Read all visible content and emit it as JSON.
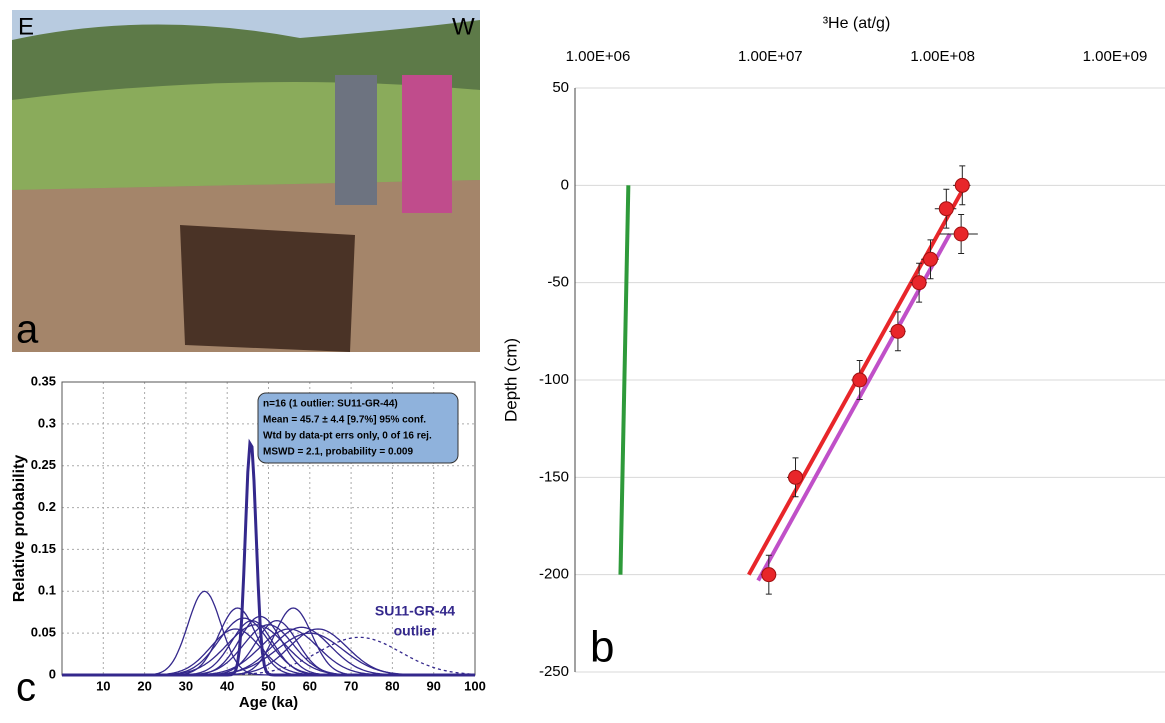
{
  "photo": {
    "left": "E",
    "right": "W",
    "panel": "a"
  },
  "chart_data": [
    {
      "type": "density",
      "panel": "c",
      "xlabel": "Age (ka)",
      "ylabel": "Relative probability",
      "xlim": [
        0,
        100
      ],
      "ylim": [
        0,
        0.35
      ],
      "xticks": [
        10,
        20,
        30,
        40,
        50,
        60,
        70,
        80,
        90,
        100
      ],
      "yticks": [
        0,
        0.05,
        0.1,
        0.15,
        0.2,
        0.25,
        0.3,
        0.35
      ],
      "grid": true,
      "color": "#34288c",
      "annotation": [
        "n=16 (1 outlier: SU11-GR-44)",
        "Mean = 45.7 ± 4.4  [9.7%]  95% conf.",
        "Wtd by data-pt errs only, 0 of 16 rej.",
        "MSWD = 2.1, probability = 0.009"
      ],
      "outlier_label": [
        "SU11-GR-44",
        "outlier"
      ],
      "curves": [
        {
          "center": 34.5,
          "peak": 0.1,
          "width": 4
        },
        {
          "center": 42.5,
          "peak": 0.08,
          "width": 4.5
        },
        {
          "center": 46,
          "peak": 0.065,
          "width": 5
        },
        {
          "center": 44,
          "peak": 0.068,
          "width": 6
        },
        {
          "center": 50,
          "peak": 0.06,
          "width": 6
        },
        {
          "center": 42,
          "peak": 0.055,
          "width": 6
        },
        {
          "center": 52,
          "peak": 0.065,
          "width": 5
        },
        {
          "center": 47,
          "peak": 0.06,
          "width": 7
        },
        {
          "center": 56,
          "peak": 0.08,
          "width": 4.5
        },
        {
          "center": 55,
          "peak": 0.055,
          "width": 7
        },
        {
          "center": 58,
          "peak": 0.057,
          "width": 7
        },
        {
          "center": 60,
          "peak": 0.05,
          "width": 8
        },
        {
          "center": 62,
          "peak": 0.055,
          "width": 7
        },
        {
          "center": 48,
          "peak": 0.07,
          "width": 5
        },
        {
          "center": 72,
          "peak": 0.045,
          "width": 10,
          "linestyle": "dashed"
        },
        {
          "center": 45.7,
          "peak": 0.28,
          "width": 1.3,
          "linestyle": "bold"
        }
      ]
    },
    {
      "type": "scatter",
      "panel": "b",
      "xlabel": "³He (at/g)",
      "ylabel": "Depth (cm)",
      "xscale": "log",
      "xlim": [
        1000000,
        1000000000
      ],
      "ylim": [
        -250,
        50
      ],
      "xticks": [
        {
          "value": 1000000,
          "label": "1.00E+06"
        },
        {
          "value": 10000000,
          "label": "1.00E+07"
        },
        {
          "value": 100000000,
          "label": "1.00E+08"
        },
        {
          "value": 1000000000,
          "label": "1.00E+09"
        }
      ],
      "yticks": [
        -250,
        -200,
        -150,
        -100,
        -50,
        0,
        50
      ],
      "grid": true,
      "color": "#e8262a",
      "x": [
        130000000,
        105000000,
        128000000,
        85000000,
        73000000,
        55000000,
        33000000,
        14000000,
        9800000
      ],
      "values": [
        0,
        -12,
        -25,
        -38,
        -50,
        -75,
        -100,
        -150,
        -200
      ],
      "xerr": [
        15000000,
        15000000,
        32000000,
        10000000,
        8000000,
        6000000,
        3500000,
        1500000,
        1000000
      ],
      "yerr": [
        10,
        10,
        10,
        10,
        10,
        10,
        10,
        10,
        10
      ],
      "lines": [
        {
          "color": "#2e9a3a",
          "x": [
            1500000,
            1350000
          ],
          "values": [
            0,
            -200
          ]
        },
        {
          "color": "#c050c8",
          "x": [
            110000000,
            8500000
          ],
          "values": [
            -25,
            -203
          ]
        },
        {
          "color": "#e8262a",
          "x": [
            135000000,
            7500000
          ],
          "values": [
            0,
            -200
          ]
        }
      ]
    }
  ]
}
